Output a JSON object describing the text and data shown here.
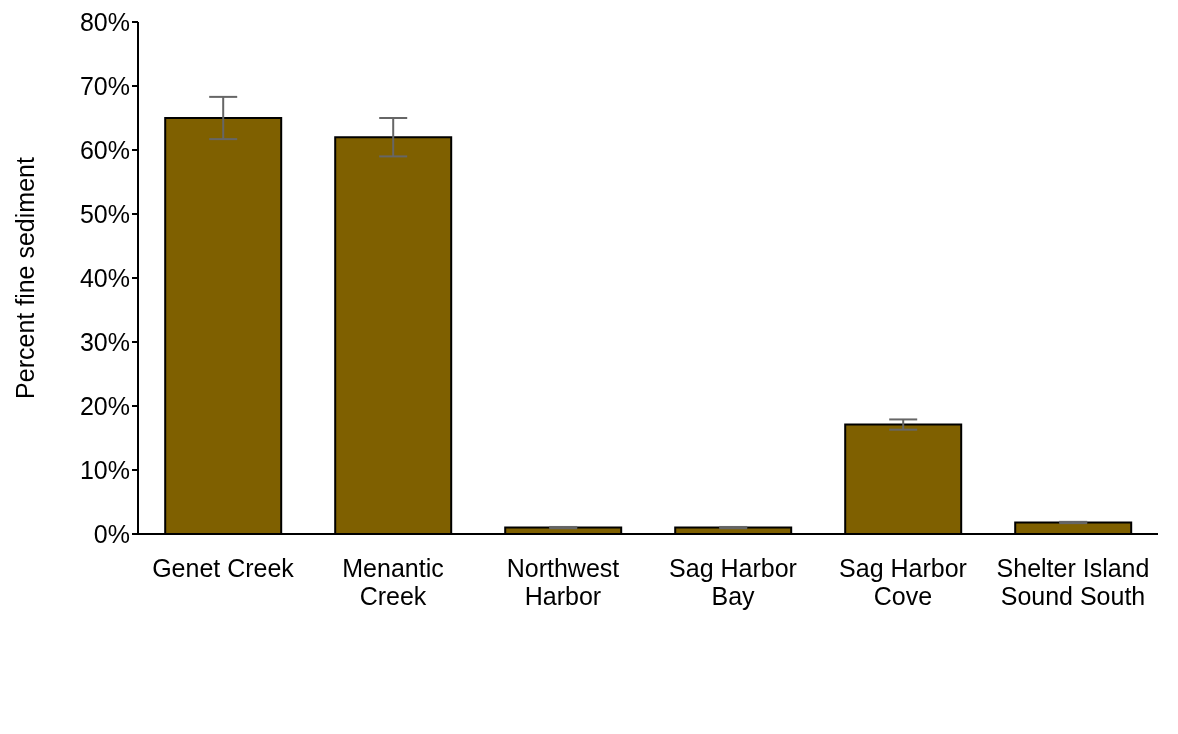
{
  "chart_data": {
    "type": "bar",
    "ylabel": "Percent fine sediment",
    "categories": [
      "Genet Creek",
      "Menantic Creek",
      "Northwest Harbor",
      "Sag Harbor Bay",
      "Sag Harbor Cove",
      "Shelter Island Sound South"
    ],
    "values": [
      65,
      62,
      1.0,
      1.0,
      17.1,
      1.8
    ],
    "errors": [
      3.3,
      3.0,
      0.1,
      0.1,
      0.8,
      0.1
    ],
    "color": "#7f6000",
    "ylim": [
      0,
      80
    ],
    "yticks": [
      {
        "value": 0,
        "label": "0%"
      },
      {
        "value": 10,
        "label": "10%"
      },
      {
        "value": 20,
        "label": "20%"
      },
      {
        "value": 30,
        "label": "30%"
      },
      {
        "value": 40,
        "label": "40%"
      },
      {
        "value": 50,
        "label": "50%"
      },
      {
        "value": 60,
        "label": "60%"
      },
      {
        "value": 70,
        "label": "70%"
      },
      {
        "value": 80,
        "label": "80%"
      }
    ],
    "grid": false,
    "legend": false
  }
}
